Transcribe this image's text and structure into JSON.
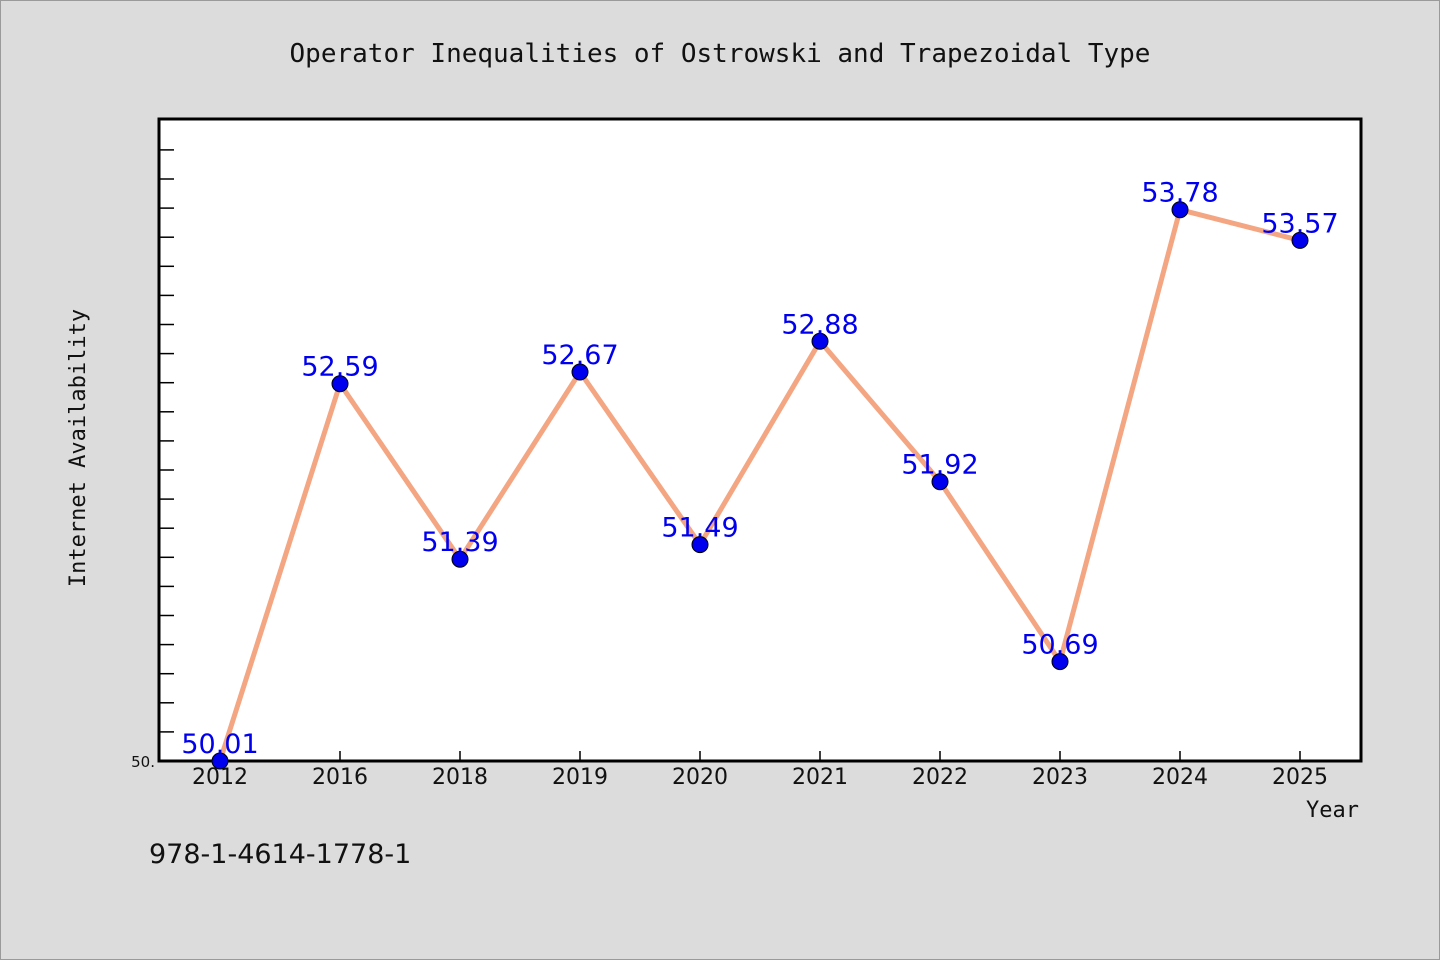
{
  "chart_data": {
    "type": "line",
    "title": "Operator Inequalities of Ostrowski and Trapezoidal Type",
    "xlabel": "Year",
    "ylabel": "Internet Availability",
    "categories": [
      "2012",
      "2016",
      "2018",
      "2019",
      "2020",
      "2021",
      "2022",
      "2023",
      "2024",
      "2025"
    ],
    "series": [
      {
        "values": [
          50.01,
          52.59,
          51.39,
          52.67,
          51.49,
          52.88,
          51.92,
          50.69,
          53.78,
          53.57
        ],
        "labels": [
          "50.01",
          "52.59",
          "51.39",
          "52.67",
          "51.49",
          "52.88",
          "51.92",
          "50.69",
          "53.78",
          "53.57"
        ]
      }
    ],
    "ylim": [
      50.01,
      54.4
    ],
    "ytick_labels": [
      "50."
    ],
    "grid": false,
    "legend": "none",
    "colors": {
      "line": "#f4a582",
      "marker": "#0000ee",
      "label": "#0000ee",
      "background": "#dcdcdc",
      "plot_background": "#ffffff"
    }
  },
  "annotation": "978-1-4614-1778-1"
}
